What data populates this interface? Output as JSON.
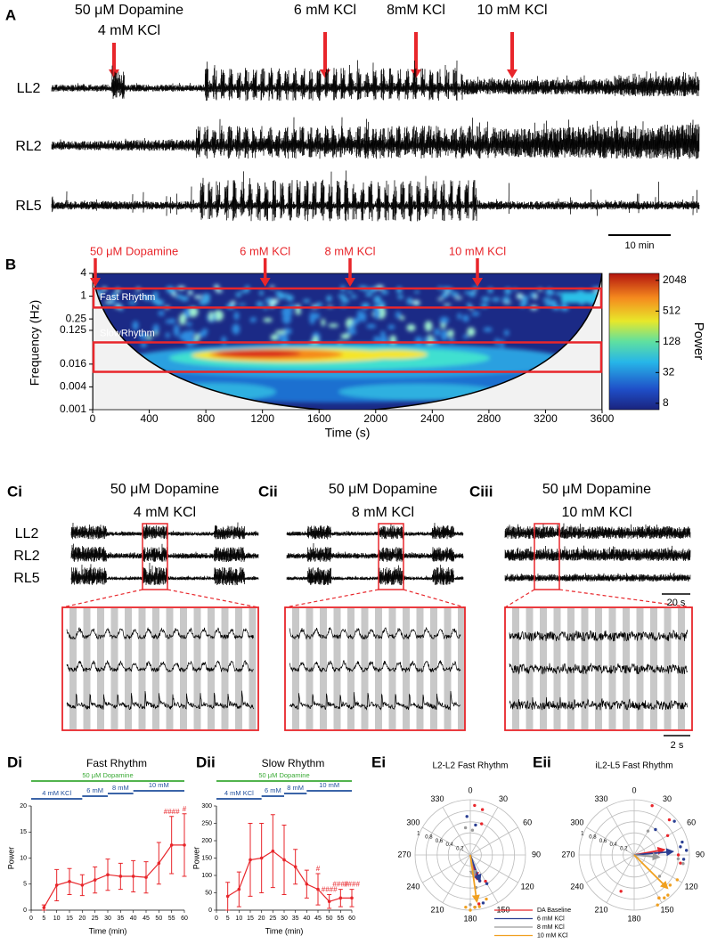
{
  "panel_a": {
    "label": "A",
    "events": [
      [
        "50 μM Dopamine",
        "4 mM KCl"
      ],
      [
        "6 mM KCl"
      ],
      [
        "8mM KCl"
      ],
      [
        "10 mM KCl"
      ]
    ],
    "traces": [
      "LL2",
      "RL2",
      "RL5"
    ],
    "scale_bar": "10 min"
  },
  "panel_c": {
    "panels": [
      {
        "label": "Ci",
        "title": "50 μM Dopamine",
        "condition": "4 mM KCl"
      },
      {
        "label": "Cii",
        "title": "50 μM Dopamine",
        "condition": "8 mM KCl"
      },
      {
        "label": "Ciii",
        "title": "50 μM Dopamine",
        "condition": "10 mM KCl"
      }
    ],
    "traces": [
      "LL2",
      "RL2",
      "RL5"
    ],
    "scale_bars": [
      "20 s",
      "2 s"
    ]
  },
  "chart_data": [
    {
      "type": "spectrogram",
      "label": "B",
      "xlabel": "Time (s)",
      "ylabel": "Frequency (Hz)",
      "xlim": [
        0,
        3600
      ],
      "xticks": [
        0,
        400,
        800,
        1200,
        1600,
        2000,
        2400,
        2800,
        3200,
        3600
      ],
      "ylim": [
        0.001,
        4
      ],
      "yticks": [
        4,
        1,
        0.25,
        0.125,
        0.016,
        0.004,
        0.001
      ],
      "log_y": true,
      "colorbar": {
        "label": "Power",
        "lim": [
          6,
          2800
        ],
        "ticks": [
          8,
          32,
          128,
          512,
          2048
        ],
        "log": true
      },
      "event_color": "#e8262b",
      "events": [
        {
          "text": "50 μM Dopamine",
          "x": 0
        },
        {
          "text": "6 mM KCl",
          "x": 1200
        },
        {
          "text": "8 mM KCl",
          "x": 1800
        },
        {
          "text": "10 mM KCl",
          "x": 2700
        }
      ],
      "bands": [
        {
          "text": "Fast Rhythm",
          "ylim": [
            0.5,
            1.6
          ]
        },
        {
          "text": "SlowRhythm",
          "ylim": [
            0.01,
            0.06
          ]
        }
      ]
    },
    {
      "type": "line",
      "label": "Di",
      "title": "Fast Rhythm",
      "xlabel": "Time (min)",
      "ylabel": "Power",
      "color": "#e8262b",
      "x": [
        5,
        10,
        15,
        20,
        25,
        30,
        35,
        40,
        45,
        50,
        55,
        60
      ],
      "values": [
        0.5,
        4.8,
        5.5,
        4.8,
        5.8,
        6.8,
        6.5,
        6.5,
        6.3,
        9,
        12.5,
        12.5
      ],
      "errors": [
        0.5,
        3,
        2.5,
        2,
        2.5,
        3,
        2.5,
        3,
        3,
        4,
        5.5,
        6
      ],
      "xlim": [
        0,
        60
      ],
      "xticks": [
        0,
        5,
        10,
        15,
        20,
        25,
        30,
        35,
        40,
        45,
        50,
        55,
        60
      ],
      "ylim": [
        0,
        20
      ],
      "yticks": [
        0,
        5,
        10,
        15,
        20
      ],
      "treatments": [
        {
          "text": "50 μM Dopamine",
          "span": [
            0,
            60
          ],
          "color": "#3aaa35"
        },
        {
          "text": "4 mM KCl",
          "span": [
            0,
            20
          ],
          "color": "#1f4e9c"
        },
        {
          "text": "6 mM",
          "span": [
            20,
            30
          ],
          "color": "#1f4e9c"
        },
        {
          "text": "8 mM",
          "span": [
            30,
            40
          ],
          "color": "#1f4e9c"
        },
        {
          "text": "10 mM",
          "span": [
            40,
            60
          ],
          "color": "#1f4e9c"
        }
      ],
      "annotations": [
        {
          "text": "####",
          "x": 55
        },
        {
          "text": "#",
          "x": 60
        }
      ]
    },
    {
      "type": "line",
      "label": "Dii",
      "title": "Slow Rhythm",
      "xlabel": "Time (min)",
      "ylabel": "Power",
      "color": "#e8262b",
      "x": [
        5,
        10,
        15,
        20,
        25,
        30,
        35,
        40,
        45,
        50,
        55,
        60
      ],
      "values": [
        40,
        60,
        145,
        150,
        170,
        145,
        125,
        75,
        60,
        25,
        35,
        35
      ],
      "errors": [
        40,
        50,
        105,
        100,
        105,
        100,
        50,
        40,
        45,
        20,
        25,
        25
      ],
      "xlim": [
        0,
        60
      ],
      "xticks": [
        0,
        5,
        10,
        15,
        20,
        25,
        30,
        35,
        40,
        45,
        50,
        55,
        60
      ],
      "ylim": [
        0,
        300
      ],
      "yticks": [
        0,
        50,
        100,
        150,
        200,
        250,
        300
      ],
      "treatments": [
        {
          "text": "50 μM Dopamine",
          "span": [
            0,
            60
          ],
          "color": "#3aaa35"
        },
        {
          "text": "4 mM KCl",
          "span": [
            0,
            20
          ],
          "color": "#1f4e9c"
        },
        {
          "text": "6 mM",
          "span": [
            20,
            30
          ],
          "color": "#1f4e9c"
        },
        {
          "text": "8 mM",
          "span": [
            30,
            40
          ],
          "color": "#1f4e9c"
        },
        {
          "text": "10 mM",
          "span": [
            40,
            60
          ],
          "color": "#1f4e9c"
        }
      ],
      "annotations": [
        {
          "text": "#",
          "x": 45
        },
        {
          "text": "####",
          "x": 50
        },
        {
          "text": "####",
          "x": 55
        },
        {
          "text": "####",
          "x": 60
        }
      ]
    },
    {
      "type": "polar",
      "label": "Ei",
      "title": "L2-L2 Fast Rhythm",
      "theta_ticks": [
        0,
        30,
        60,
        90,
        120,
        150,
        180,
        210,
        240,
        270,
        300,
        330
      ],
      "rlim": [
        0,
        1
      ],
      "rticks": [
        0.2,
        0.4,
        0.6,
        0.8,
        1
      ],
      "series": [
        {
          "name": "DA Baseline",
          "color": "#e8262b",
          "theta": [
            5,
            15,
            20,
            170,
            175,
            160,
            150
          ],
          "r": [
            0.9,
            0.85,
            0.6,
            0.9,
            0.95,
            0.5,
            0.55
          ],
          "mean_theta": 165,
          "mean_r": 0.45
        },
        {
          "name": "6 mM KCl",
          "color": "#2a3f93",
          "theta": [
            355,
            10,
            160,
            165,
            175,
            150
          ],
          "r": [
            0.7,
            0.55,
            0.5,
            0.9,
            0.95,
            0.6
          ],
          "mean_theta": 160,
          "mean_r": 0.5
        },
        {
          "name": "8 mM KCl",
          "color": "#9a9a9a",
          "theta": [
            350,
            5,
            170,
            175,
            180
          ],
          "r": [
            0.5,
            0.45,
            0.6,
            0.95,
            0.9
          ],
          "mean_theta": 170,
          "mean_r": 0.4
        },
        {
          "name": "10 mM KCl",
          "color": "#f0a020",
          "theta": [
            175,
            180,
            185,
            170,
            160
          ],
          "r": [
            0.95,
            1,
            0.95,
            0.95,
            0.85
          ],
          "mean_theta": 172,
          "mean_r": 0.85
        }
      ]
    },
    {
      "type": "polar",
      "label": "Eii",
      "title": "iL2-L5 Fast Rhythm",
      "theta_ticks": [
        0,
        30,
        60,
        90,
        120,
        150,
        180,
        210,
        240,
        270,
        300,
        330
      ],
      "rlim": [
        0,
        1
      ],
      "rticks": [
        0.2,
        0.4,
        0.6,
        0.8,
        1
      ],
      "series": [
        {
          "color": "#e8262b",
          "theta": [
            20,
            45,
            60,
            90,
            100,
            150,
            200
          ],
          "r": [
            0.95,
            0.9,
            0.7,
            0.8,
            0.85,
            0.9,
            0.7
          ],
          "mean_theta": 80,
          "mean_r": 0.55
        },
        {
          "color": "#2a3f93",
          "theta": [
            40,
            50,
            75,
            85,
            95,
            80
          ],
          "r": [
            0.6,
            0.95,
            0.9,
            0.95,
            0.9,
            0.85
          ],
          "mean_theta": 85,
          "mean_r": 0.7
        },
        {
          "color": "#9a9a9a",
          "theta": [
            30,
            95,
            100,
            130
          ],
          "r": [
            0.5,
            0.8,
            0.9,
            0.6
          ],
          "mean_theta": 95,
          "mean_r": 0.45
        },
        {
          "color": "#f0a020",
          "theta": [
            120,
            130,
            140,
            145,
            150,
            155
          ],
          "r": [
            0.9,
            0.85,
            0.95,
            0.95,
            0.9,
            1
          ],
          "mean_theta": 135,
          "mean_r": 0.85
        }
      ]
    }
  ]
}
